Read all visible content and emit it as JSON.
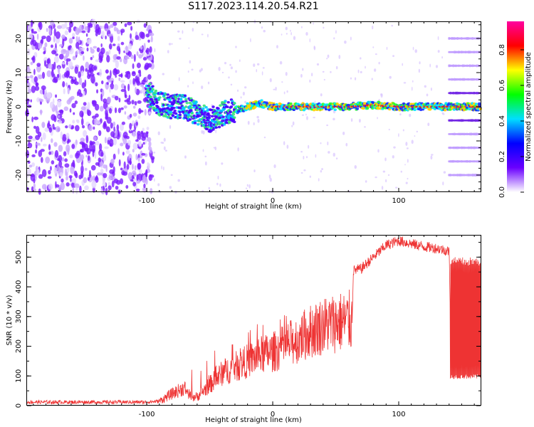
{
  "title": "S117.2023.114.20.54.R21",
  "chart_data": [
    {
      "type": "heatmap",
      "xlabel": "Height of straight line (km)",
      "ylabel": "Frequency (Hz)",
      "xlim": [
        -195,
        165
      ],
      "ylim": [
        -25,
        25
      ],
      "xticks": [
        -100,
        0,
        100
      ],
      "yticks": [
        -20,
        -10,
        0,
        10,
        20
      ],
      "colorbar": {
        "label": "Normalized spectral amplitude",
        "range": [
          0.0,
          0.96
        ],
        "ticks": [
          0.0,
          0.2,
          0.4,
          0.6,
          0.8
        ],
        "tick_labels": [
          "0.0",
          "0.2",
          "0.4",
          "0.6",
          "0.8"
        ],
        "colormap": [
          "#ffffff",
          "#6a00ff",
          "#0000ff",
          "#00dfff",
          "#00ff00",
          "#ffff00",
          "#ff0000",
          "#ff00a0"
        ]
      },
      "dominant_frequency": {
        "x": [
          -100,
          -90,
          -80,
          -70,
          -60,
          -50,
          -40,
          -30,
          -20,
          -10,
          0,
          10,
          20,
          40,
          60,
          80,
          100,
          120,
          140,
          165
        ],
        "y": [
          4,
          1,
          0,
          0,
          -2,
          -4,
          -2,
          -1,
          0,
          1,
          0,
          0,
          0,
          0,
          0,
          0.5,
          0,
          0,
          0,
          0
        ]
      },
      "grid": false
    },
    {
      "type": "line",
      "xlabel": "Height of straight line (km)",
      "ylabel": "SNR (10 * v/v)",
      "xlim": [
        -195,
        165
      ],
      "ylim": [
        0,
        575
      ],
      "xticks": [
        -100,
        0,
        100
      ],
      "yticks": [
        0,
        100,
        200,
        300,
        400,
        500
      ],
      "color": "#ee3333",
      "series": [
        {
          "x": [
            -195,
            -150,
            -100,
            -90,
            -80,
            -70,
            -65,
            -60,
            -50,
            -40,
            -30,
            -20,
            -10,
            0,
            10,
            20,
            30,
            40,
            50,
            60,
            63,
            64,
            70,
            80,
            90,
            100,
            110,
            120,
            130,
            140,
            141,
            150,
            165
          ],
          "y": [
            12,
            12,
            12,
            15,
            40,
            60,
            30,
            30,
            70,
            110,
            130,
            150,
            170,
            180,
            200,
            225,
            250,
            270,
            280,
            285,
            285,
            455,
            460,
            500,
            540,
            555,
            545,
            535,
            530,
            520,
            300,
            300,
            300
          ]
        }
      ],
      "grid": false
    }
  ]
}
